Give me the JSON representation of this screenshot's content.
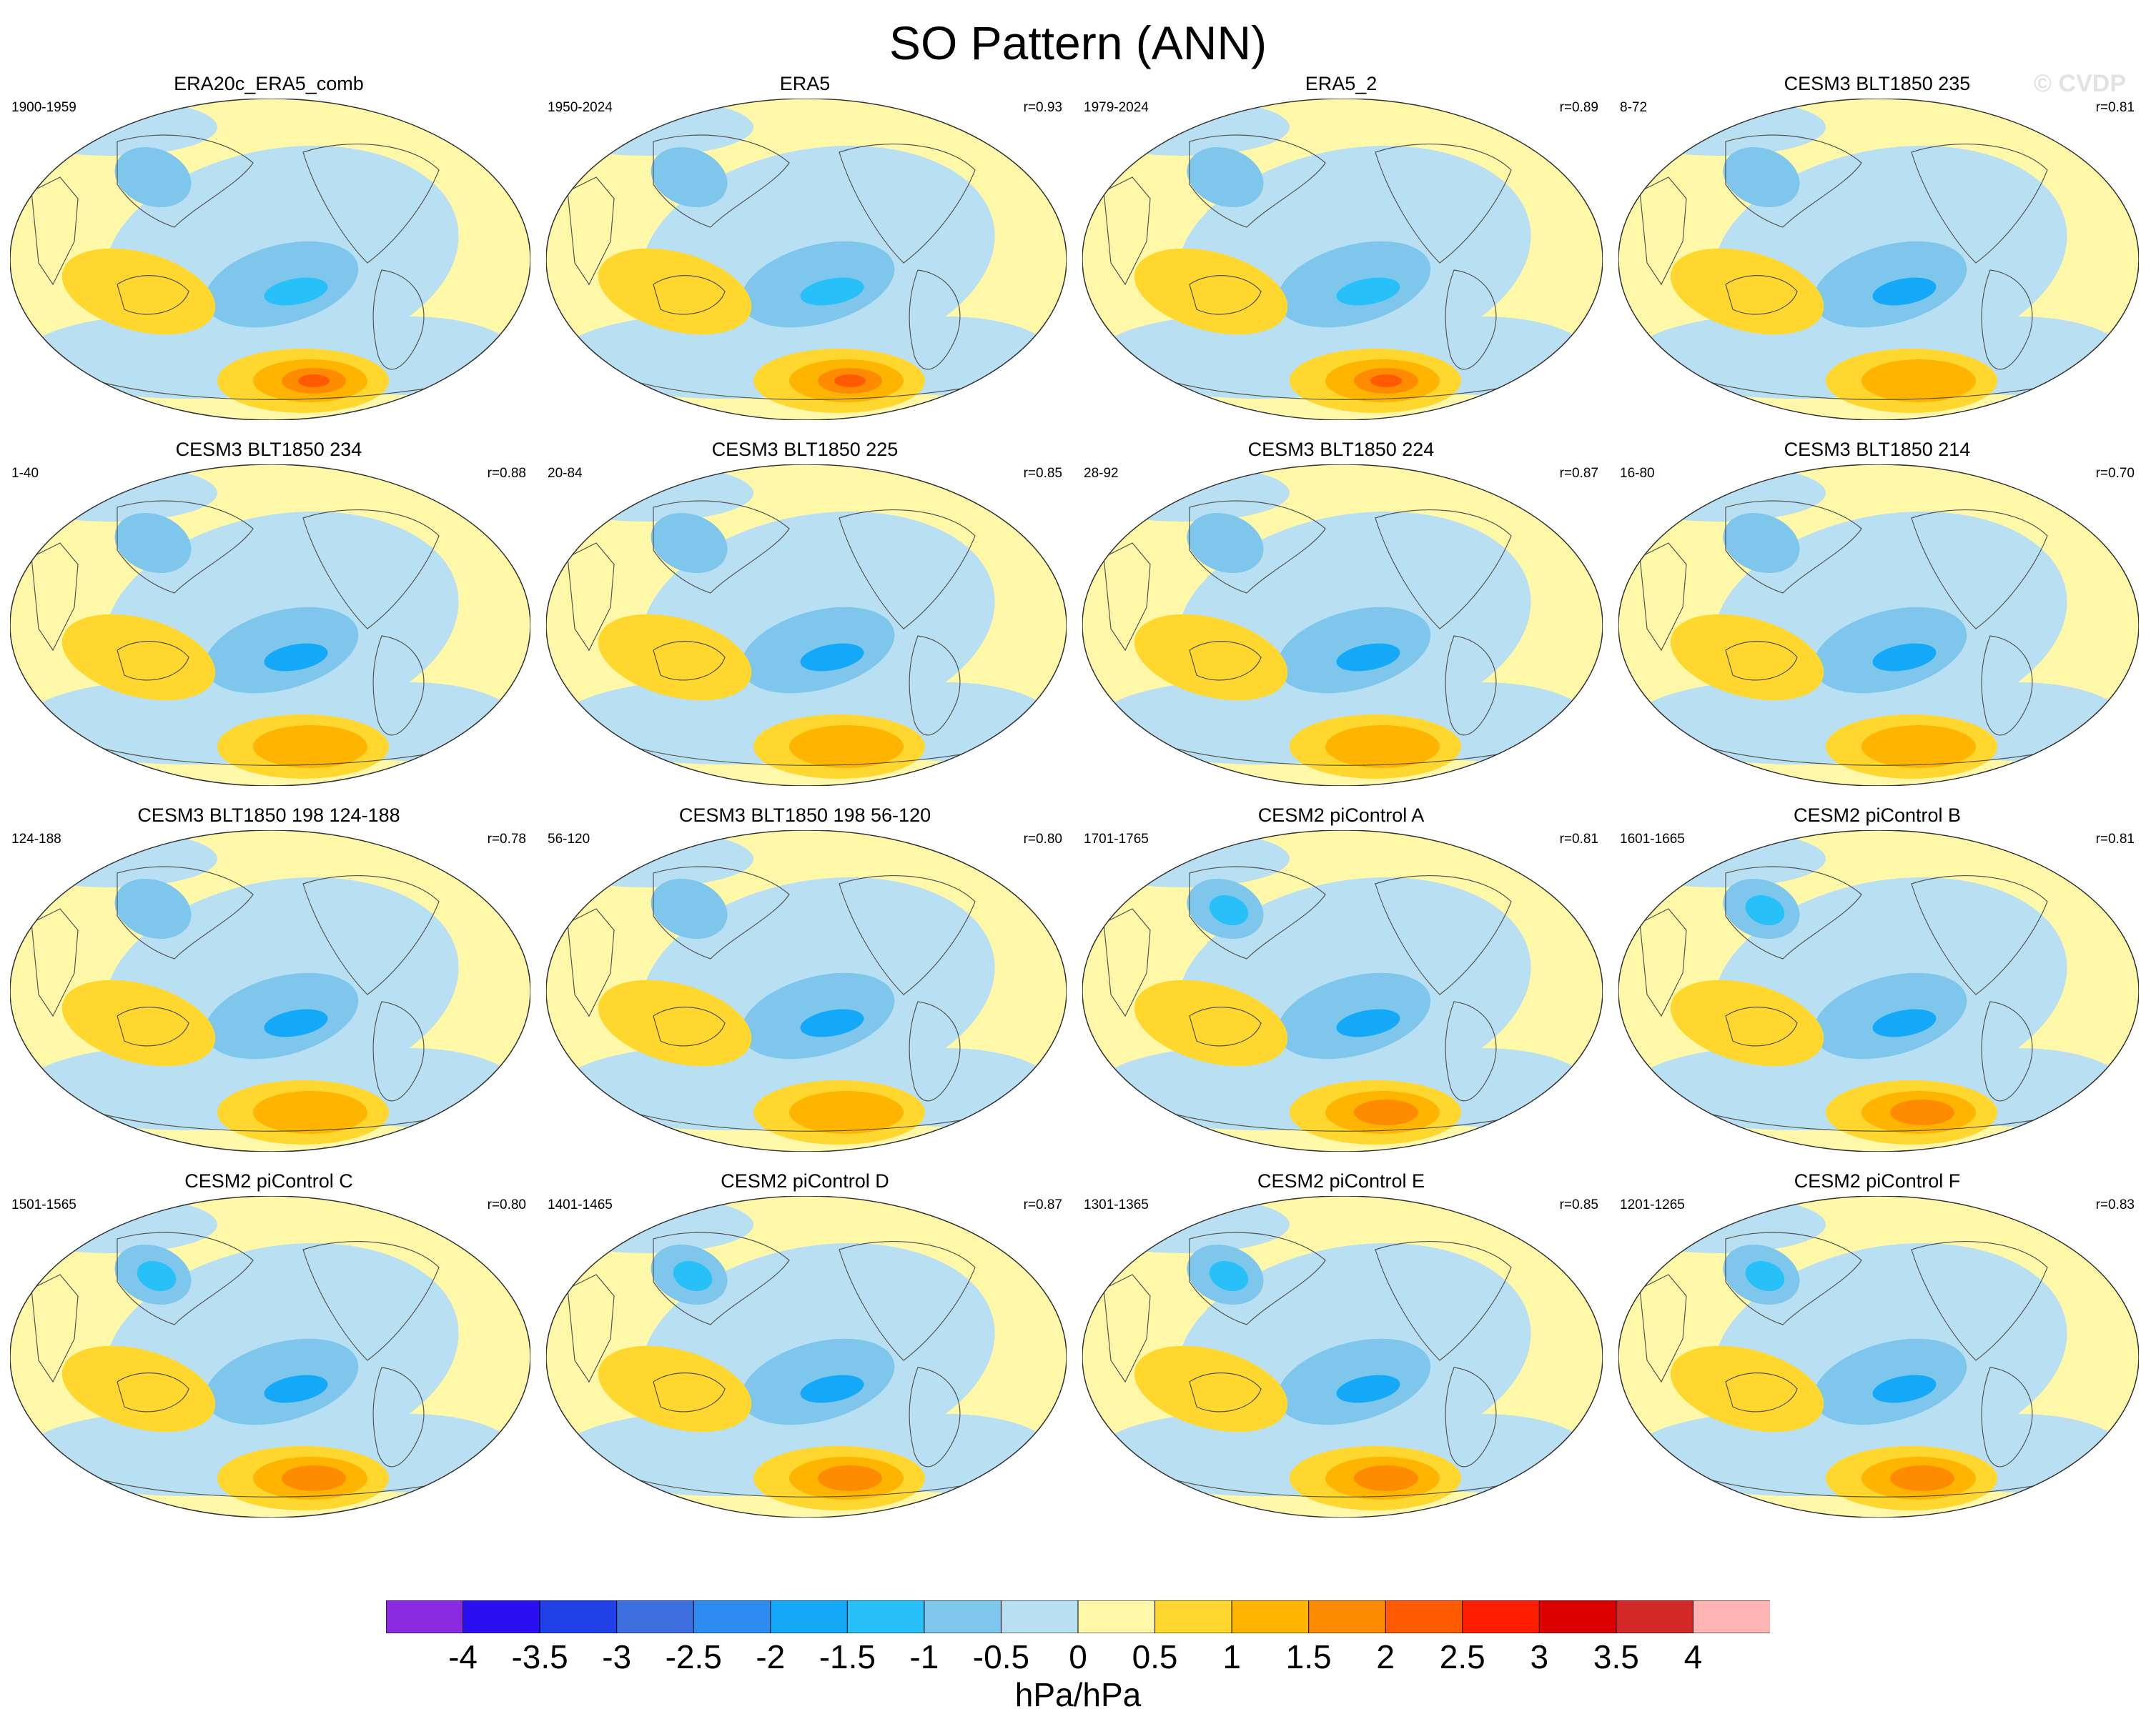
{
  "figure": {
    "title": "SO Pattern (ANN)",
    "watermark": "© CVDP"
  },
  "panels": [
    {
      "title": "ERA20c_ERA5_comb",
      "years": "1900-1959",
      "corr": "",
      "variant": "obs"
    },
    {
      "title": "ERA5",
      "years": "1950-2024",
      "corr": "r=0.93",
      "variant": "obs"
    },
    {
      "title": "ERA5_2",
      "years": "1979-2024",
      "corr": "r=0.89",
      "variant": "obs"
    },
    {
      "title": "CESM3 BLT1850 235",
      "years": "8-72",
      "corr": "r=0.81",
      "variant": "blt"
    },
    {
      "title": "CESM3 BLT1850 234",
      "years": "1-40",
      "corr": "r=0.88",
      "variant": "blt"
    },
    {
      "title": "CESM3 BLT1850 225",
      "years": "20-84",
      "corr": "r=0.85",
      "variant": "blt"
    },
    {
      "title": "CESM3 BLT1850 224",
      "years": "28-92",
      "corr": "r=0.87",
      "variant": "blt"
    },
    {
      "title": "CESM3 BLT1850 214",
      "years": "16-80",
      "corr": "r=0.70",
      "variant": "blt"
    },
    {
      "title": "CESM3 BLT1850 198 124-188",
      "years": "124-188",
      "corr": "r=0.78",
      "variant": "blt"
    },
    {
      "title": "CESM3 BLT1850 198 56-120",
      "years": "56-120",
      "corr": "r=0.80",
      "variant": "blt"
    },
    {
      "title": "CESM2 piControl A",
      "years": "1701-1765",
      "corr": "r=0.81",
      "variant": "pi"
    },
    {
      "title": "CESM2 piControl B",
      "years": "1601-1665",
      "corr": "r=0.81",
      "variant": "pi"
    },
    {
      "title": "CESM2 piControl C",
      "years": "1501-1565",
      "corr": "r=0.80",
      "variant": "pi"
    },
    {
      "title": "CESM2 piControl D",
      "years": "1401-1465",
      "corr": "r=0.87",
      "variant": "pi"
    },
    {
      "title": "CESM2 piControl E",
      "years": "1301-1365",
      "corr": "r=0.85",
      "variant": "pi"
    },
    {
      "title": "CESM2 piControl F",
      "years": "1201-1265",
      "corr": "r=0.83",
      "variant": "pi"
    }
  ],
  "colorbar": {
    "units": "hPa/hPa",
    "labels": [
      "-4",
      "-3.5",
      "-3",
      "-2.5",
      "-2",
      "-1.5",
      "-1",
      "-0.5",
      "0",
      "0.5",
      "1",
      "1.5",
      "2",
      "2.5",
      "3",
      "3.5",
      "4"
    ],
    "colors": [
      "#8a2be2",
      "#2a10f0",
      "#2040e8",
      "#3c6ee0",
      "#2e8cf0",
      "#14a8f8",
      "#28c0f8",
      "#7ec6ec",
      "#b8e0f2",
      "#fff8a8",
      "#ffd72e",
      "#ffb400",
      "#ff8c00",
      "#ff5a00",
      "#ff1e00",
      "#dc0000",
      "#d22828",
      "#ffb4b4"
    ]
  },
  "colors": {
    "neg_weak": "#b8e0f2",
    "neg_mid": "#7ec6ec",
    "neg_strong": "#28c0f8",
    "neg_core": "#14a8f8",
    "pos_weak": "#fff8a8",
    "pos_mid": "#ffd72e",
    "pos_strong": "#ffb400",
    "pos_core": "#ff8c00",
    "pos_peak": "#ff5a00"
  }
}
